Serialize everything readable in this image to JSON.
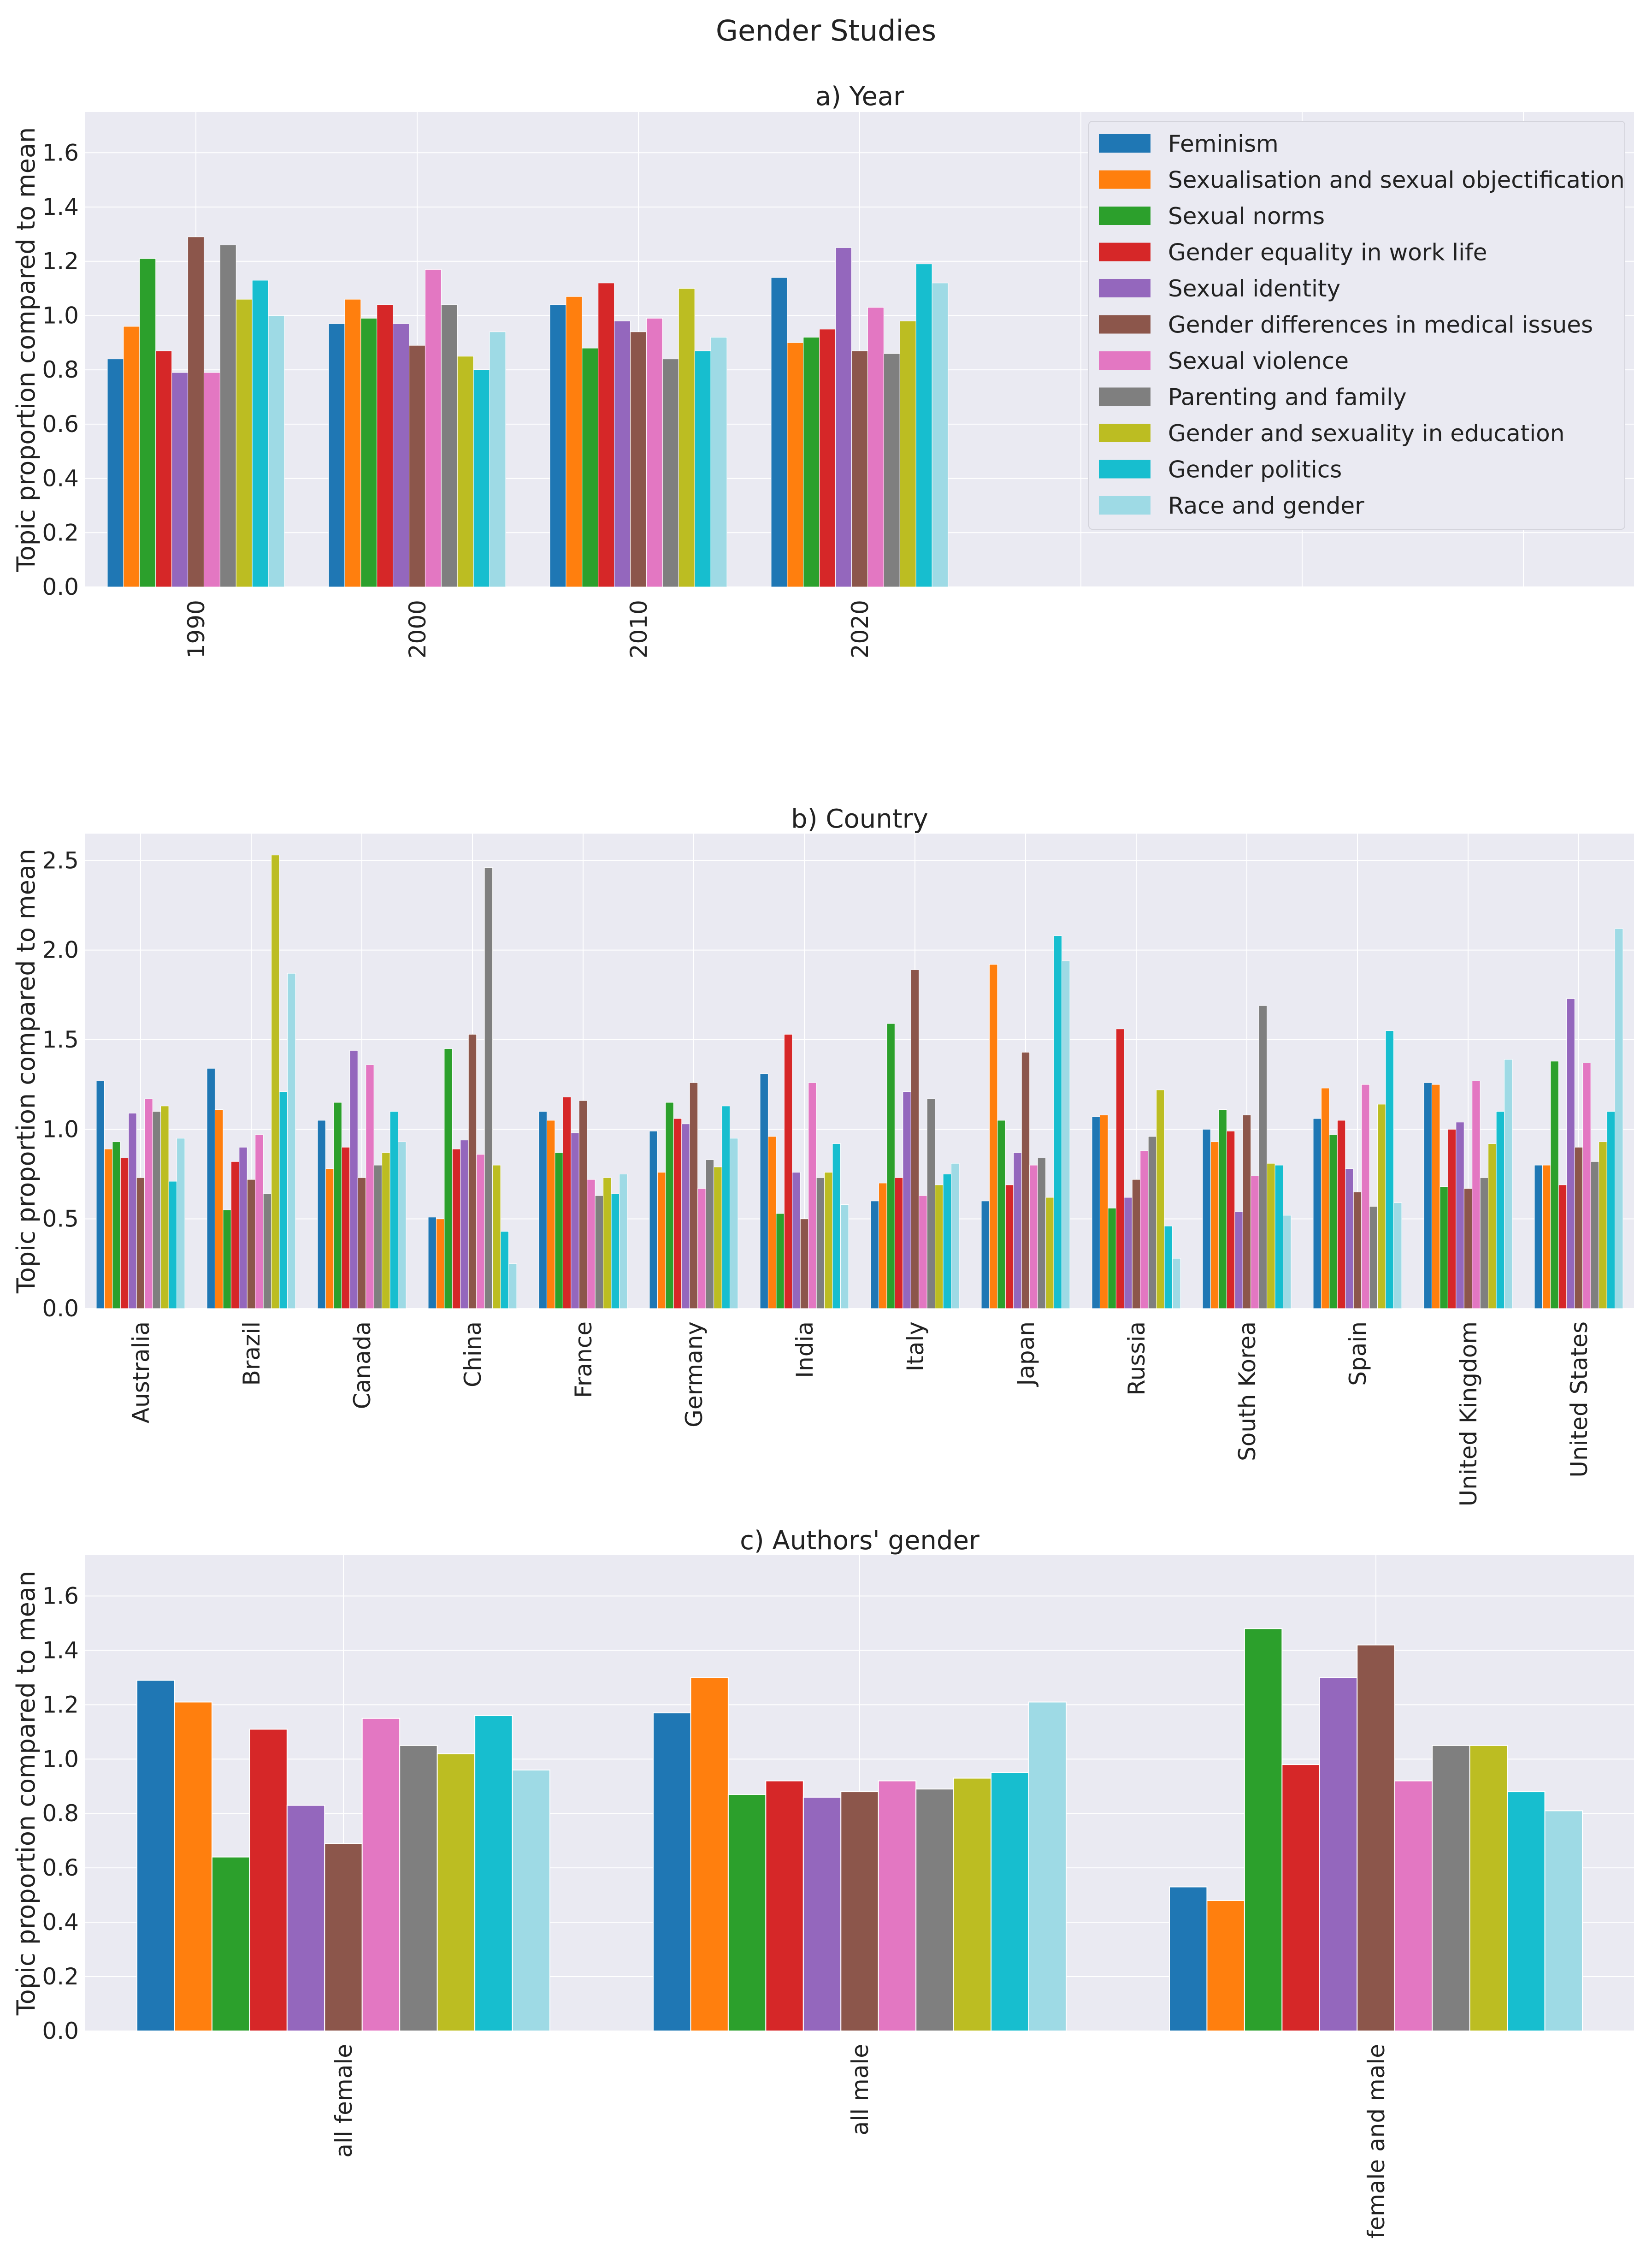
{
  "suptitle": "Gender Studies",
  "colors": [
    "#1f77b4",
    "#ff7f0e",
    "#2ca02c",
    "#d62728",
    "#9467bd",
    "#8c564b",
    "#e377c2",
    "#7f7f7f",
    "#bcbd22",
    "#17becf",
    "#9edae5"
  ],
  "chart_data": [
    {
      "type": "bar",
      "title": "a) Year",
      "xlabel": "",
      "ylabel": "Topic proportion compared to mean",
      "ylim": [
        0,
        1.75
      ],
      "yticks": [
        0.0,
        0.2,
        0.4,
        0.6,
        0.8,
        1.0,
        1.2,
        1.4,
        1.6
      ],
      "ytick_labels": [
        "0.0",
        "0.2",
        "0.4",
        "0.6",
        "0.8",
        "1.0",
        "1.2",
        "1.4",
        "1.6"
      ],
      "x_slots": 7,
      "grid": true,
      "legend_position": "top-right",
      "categories": [
        "1990",
        "2000",
        "2010",
        "2020"
      ],
      "series": [
        {
          "name": "Feminism",
          "values": [
            0.84,
            0.97,
            1.04,
            1.14
          ]
        },
        {
          "name": "Sexualisation and sexual objectification",
          "values": [
            0.96,
            1.06,
            1.07,
            0.9
          ]
        },
        {
          "name": "Sexual norms",
          "values": [
            1.21,
            0.99,
            0.88,
            0.92
          ]
        },
        {
          "name": "Gender equality in work life",
          "values": [
            0.87,
            1.04,
            1.12,
            0.95
          ]
        },
        {
          "name": "Sexual identity",
          "values": [
            0.79,
            0.97,
            0.98,
            1.25
          ]
        },
        {
          "name": "Gender differences in medical issues",
          "values": [
            1.29,
            0.89,
            0.94,
            0.87
          ]
        },
        {
          "name": "Sexual violence",
          "values": [
            0.79,
            1.17,
            0.99,
            1.03
          ]
        },
        {
          "name": "Parenting and family",
          "values": [
            1.26,
            1.04,
            0.84,
            0.86
          ]
        },
        {
          "name": "Gender and sexuality in education",
          "values": [
            1.06,
            0.85,
            1.1,
            0.98
          ]
        },
        {
          "name": "Gender politics",
          "values": [
            1.13,
            0.8,
            0.87,
            1.19
          ]
        },
        {
          "name": "Race and gender",
          "values": [
            1.0,
            0.94,
            0.92,
            1.12
          ]
        }
      ]
    },
    {
      "type": "bar",
      "title": "b) Country",
      "xlabel": "",
      "ylabel": "Topic proportion compared to mean",
      "ylim": [
        0,
        2.65
      ],
      "yticks": [
        0.0,
        0.5,
        1.0,
        1.5,
        2.0,
        2.5
      ],
      "ytick_labels": [
        "0.0",
        "0.5",
        "1.0",
        "1.5",
        "2.0",
        "2.5"
      ],
      "grid": true,
      "categories": [
        "Australia",
        "Brazil",
        "Canada",
        "China",
        "France",
        "Germany",
        "India",
        "Italy",
        "Japan",
        "Russia",
        "South Korea",
        "Spain",
        "United Kingdom",
        "United States"
      ],
      "series": [
        {
          "name": "Feminism",
          "values": [
            1.27,
            1.34,
            1.05,
            0.51,
            1.1,
            0.99,
            1.31,
            0.6,
            0.6,
            1.07,
            1.0,
            1.06,
            1.26,
            0.8
          ]
        },
        {
          "name": "Sexualisation and sexual objectification",
          "values": [
            0.89,
            1.11,
            0.78,
            0.5,
            1.05,
            0.76,
            0.96,
            0.7,
            1.92,
            1.08,
            0.93,
            1.23,
            1.25,
            0.8
          ]
        },
        {
          "name": "Sexual norms",
          "values": [
            0.93,
            0.55,
            1.15,
            1.45,
            0.87,
            1.15,
            0.53,
            1.59,
            1.05,
            0.56,
            1.11,
            0.97,
            0.68,
            1.38
          ]
        },
        {
          "name": "Gender equality in work life",
          "values": [
            0.84,
            0.82,
            0.9,
            0.89,
            1.18,
            1.06,
            1.53,
            0.73,
            0.69,
            1.56,
            0.99,
            1.05,
            1.0,
            0.69
          ]
        },
        {
          "name": "Sexual identity",
          "values": [
            1.09,
            0.9,
            1.44,
            0.94,
            0.98,
            1.03,
            0.76,
            1.21,
            0.87,
            0.62,
            0.54,
            0.78,
            1.04,
            1.73
          ]
        },
        {
          "name": "Gender differences in medical issues",
          "values": [
            0.73,
            0.72,
            0.73,
            1.53,
            1.16,
            1.26,
            0.5,
            1.89,
            1.43,
            0.72,
            1.08,
            0.65,
            0.67,
            0.9
          ]
        },
        {
          "name": "Sexual violence",
          "values": [
            1.17,
            0.97,
            1.36,
            0.86,
            0.72,
            0.67,
            1.26,
            0.63,
            0.8,
            0.88,
            0.74,
            1.25,
            1.27,
            1.37
          ]
        },
        {
          "name": "Parenting and family",
          "values": [
            1.1,
            0.64,
            0.8,
            2.46,
            0.63,
            0.83,
            0.73,
            1.17,
            0.84,
            0.96,
            1.69,
            0.57,
            0.73,
            0.82
          ]
        },
        {
          "name": "Gender and sexuality in education",
          "values": [
            1.13,
            2.53,
            0.87,
            0.8,
            0.73,
            0.79,
            0.76,
            0.69,
            0.62,
            1.22,
            0.81,
            1.14,
            0.92,
            0.93
          ]
        },
        {
          "name": "Gender politics",
          "values": [
            0.71,
            1.21,
            1.1,
            0.43,
            0.64,
            1.13,
            0.92,
            0.75,
            2.08,
            0.46,
            0.8,
            1.55,
            1.1,
            1.1
          ]
        },
        {
          "name": "Race and gender",
          "values": [
            0.95,
            1.87,
            0.93,
            0.25,
            0.75,
            0.95,
            0.58,
            0.81,
            1.94,
            0.28,
            0.52,
            0.59,
            1.39,
            2.12
          ]
        }
      ]
    },
    {
      "type": "bar",
      "title": "c) Authors' gender",
      "xlabel": "",
      "ylabel": "Topic proportion compared to mean",
      "ylim": [
        0,
        1.75
      ],
      "yticks": [
        0.0,
        0.2,
        0.4,
        0.6,
        0.8,
        1.0,
        1.2,
        1.4,
        1.6
      ],
      "ytick_labels": [
        "0.0",
        "0.2",
        "0.4",
        "0.6",
        "0.8",
        "1.0",
        "1.2",
        "1.4",
        "1.6"
      ],
      "grid": true,
      "categories": [
        "all female",
        "all male",
        "female and male"
      ],
      "series": [
        {
          "name": "Feminism",
          "values": [
            1.29,
            1.17,
            0.53
          ]
        },
        {
          "name": "Sexualisation and sexual objectification",
          "values": [
            1.21,
            1.3,
            0.48
          ]
        },
        {
          "name": "Sexual norms",
          "values": [
            0.64,
            0.87,
            1.48
          ]
        },
        {
          "name": "Gender equality in work life",
          "values": [
            1.11,
            0.92,
            0.98
          ]
        },
        {
          "name": "Sexual identity",
          "values": [
            0.83,
            0.86,
            1.3
          ]
        },
        {
          "name": "Gender differences in medical issues",
          "values": [
            0.69,
            0.88,
            1.42
          ]
        },
        {
          "name": "Sexual violence",
          "values": [
            1.15,
            0.92,
            0.92
          ]
        },
        {
          "name": "Parenting and family",
          "values": [
            1.05,
            0.89,
            1.05
          ]
        },
        {
          "name": "Gender and sexuality in education",
          "values": [
            1.02,
            0.93,
            1.05
          ]
        },
        {
          "name": "Gender politics",
          "values": [
            1.16,
            0.95,
            0.88
          ]
        },
        {
          "name": "Race and gender",
          "values": [
            0.96,
            1.21,
            0.81
          ]
        }
      ]
    }
  ]
}
